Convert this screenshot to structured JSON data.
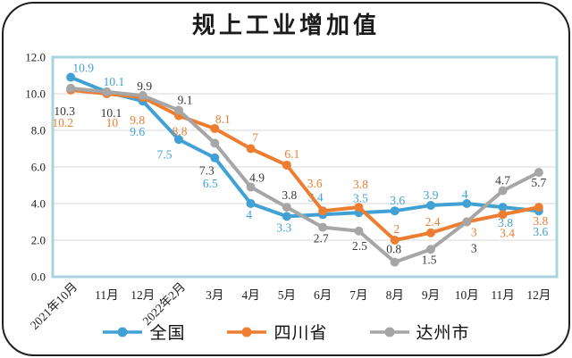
{
  "title": "规上工业增加值",
  "colors": {
    "plot_border": "#A9D4DD",
    "gridline": "#D9D9D9",
    "frame_border": "#1F1F1F",
    "axis_text": "#1F1F1F"
  },
  "chart_data": {
    "type": "line",
    "title": "规上工业增加值",
    "categories": [
      "2021年10月",
      "11月",
      "12月",
      "2022年2月",
      "3月",
      "4月",
      "5月",
      "6月",
      "7月",
      "8月",
      "9月",
      "10月",
      "11月",
      "12月"
    ],
    "rotated_category_indices": [
      0,
      3
    ],
    "series": [
      {
        "name": "全国",
        "color": "#41A1D5",
        "label_color": "#41A1D5",
        "values": [
          10.9,
          10.1,
          9.6,
          7.5,
          6.5,
          4,
          3.3,
          3.4,
          3.5,
          3.6,
          3.9,
          4,
          3.8,
          3.6
        ]
      },
      {
        "name": "四川省",
        "color": "#ED7D31",
        "label_color": "#ED7D31",
        "values": [
          10.2,
          10,
          9.8,
          8.8,
          8.1,
          7,
          6.1,
          3.6,
          3.8,
          2,
          2.4,
          3,
          3.4,
          3.8
        ]
      },
      {
        "name": "达州市",
        "color": "#A6A6A6",
        "label_color": "#363636",
        "values": [
          10.3,
          10.1,
          9.9,
          9.1,
          7.3,
          4.9,
          3.8,
          2.7,
          2.5,
          0.8,
          1.5,
          3,
          4.7,
          5.7
        ]
      }
    ],
    "xlabel": "",
    "ylabel": "",
    "ylim": [
      0,
      12
    ],
    "ytick_step": 2,
    "ytick_labels": [
      "0.0",
      "2.0",
      "4.0",
      "6.0",
      "8.0",
      "10.0",
      "12.0"
    ],
    "grid": true,
    "legend_position": "bottom"
  }
}
